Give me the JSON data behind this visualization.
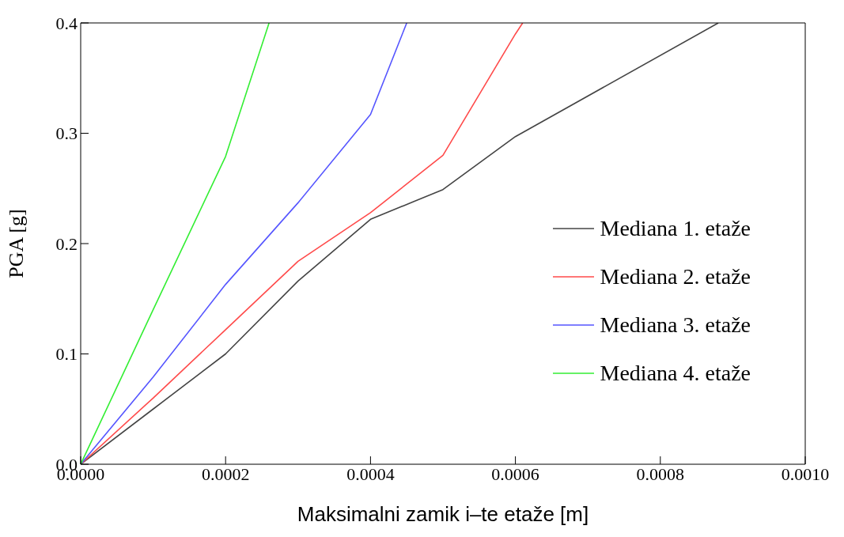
{
  "chart_data": {
    "type": "line",
    "xlabel": "Maksimalni zamik i–te etaže [m]",
    "ylabel": "PGA [g]",
    "xlim": [
      0,
      0.001
    ],
    "xticks": [
      {
        "value": 0,
        "label": "0.0000"
      },
      {
        "value": 0.0002,
        "label": "0.0002"
      },
      {
        "value": 0.0004,
        "label": "0.0004"
      },
      {
        "value": 0.0006,
        "label": "0.0006"
      },
      {
        "value": 0.0008,
        "label": "0.0008"
      },
      {
        "value": 0.001,
        "label": "0.0010"
      }
    ],
    "ylim": [
      0,
      0.4
    ],
    "yticks": [
      {
        "value": 0,
        "label": "0.0"
      },
      {
        "value": 0.1,
        "label": "0.1"
      },
      {
        "value": 0.2,
        "label": "0.2"
      },
      {
        "value": 0.3,
        "label": "0.3"
      },
      {
        "value": 0.4,
        "label": "0.4"
      }
    ],
    "grid": false,
    "legend": "right",
    "marker": "none",
    "line_style": "solid",
    "series": [
      {
        "name": "Mediana 1. etaže",
        "color": "#444444",
        "x": [
          0,
          0.0001,
          0.0002,
          0.0003,
          0.0004,
          0.0005,
          0.0006,
          0.00088
        ],
        "values": [
          0,
          0.05,
          0.1,
          0.166,
          0.222,
          0.249,
          0.297,
          0.4
        ]
      },
      {
        "name": "Mediana 2. etaže",
        "color": "#ff4a4a",
        "x": [
          0,
          0.0001,
          0.0002,
          0.0003,
          0.0004,
          0.0005,
          0.0006,
          0.00061
        ],
        "values": [
          0,
          0.06,
          0.122,
          0.184,
          0.228,
          0.28,
          0.39,
          0.4
        ]
      },
      {
        "name": "Mediana 3. etaže",
        "color": "#5555ff",
        "x": [
          0,
          0.0001,
          0.0002,
          0.0003,
          0.0004,
          0.00045
        ],
        "values": [
          0,
          0.079,
          0.163,
          0.237,
          0.317,
          0.4
        ]
      },
      {
        "name": "Mediana 4. etaže",
        "color": "#33ee33",
        "x": [
          0,
          0.0001,
          0.0002,
          0.00026
        ],
        "values": [
          0,
          0.14,
          0.279,
          0.4
        ]
      }
    ]
  }
}
